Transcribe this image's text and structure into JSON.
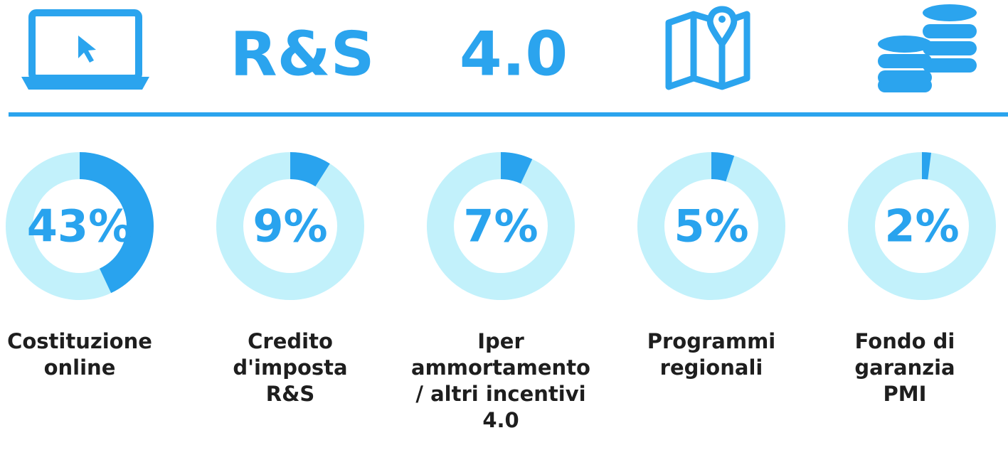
{
  "header": {
    "text_1": "R&S",
    "text_2": "4.0"
  },
  "chart_data": {
    "type": "donut",
    "categories": [
      "Costituzione\nonline",
      "Credito\nd'imposta\nR&S",
      "Iper\nammortamento\n/ altri incentivi\n4.0",
      "Programmi\nregionali",
      "Fondo di\ngaranzia\nPMI"
    ],
    "values": [
      43,
      9,
      7,
      5,
      2
    ],
    "value_labels": [
      "43%",
      "9%",
      "7%",
      "5%",
      "2%"
    ],
    "color": "#29a3ee",
    "track_color": "#c2f1fb"
  }
}
